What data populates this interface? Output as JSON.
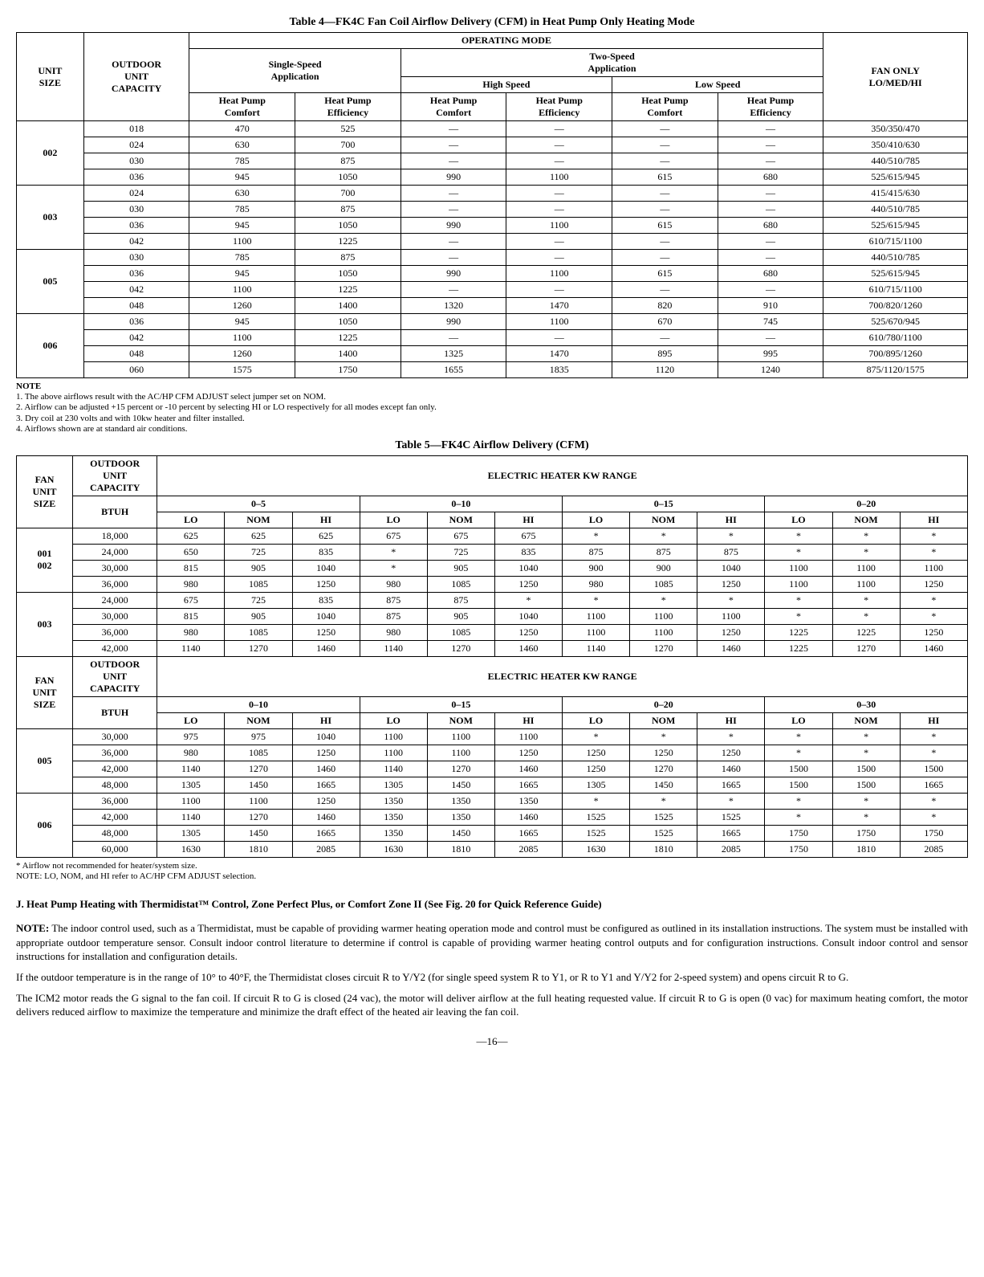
{
  "table4": {
    "title": "Table 4—FK4C Fan Coil Airflow Delivery (CFM) in Heat Pump Only Heating Mode",
    "headers": {
      "unit_size": "UNIT\nSIZE",
      "outdoor": "OUTDOOR\nUNIT\nCAPACITY",
      "operating": "OPERATING MODE",
      "single": "Single-Speed\nApplication",
      "two": "Two-Speed\nApplication",
      "high": "High Speed",
      "low": "Low Speed",
      "hpc": "Heat Pump\nComfort",
      "hpe": "Heat Pump\nEfficiency",
      "fanonly": "FAN ONLY\nLO/MED/HI"
    },
    "groups": [
      {
        "unit": "002",
        "rows": [
          {
            "out": "018",
            "s_c": "470",
            "s_e": "525",
            "h_c": "—",
            "h_e": "—",
            "l_c": "—",
            "l_e": "—",
            "fan": "350/350/470"
          },
          {
            "out": "024",
            "s_c": "630",
            "s_e": "700",
            "h_c": "—",
            "h_e": "—",
            "l_c": "—",
            "l_e": "—",
            "fan": "350/410/630"
          },
          {
            "out": "030",
            "s_c": "785",
            "s_e": "875",
            "h_c": "—",
            "h_e": "—",
            "l_c": "—",
            "l_e": "—",
            "fan": "440/510/785"
          },
          {
            "out": "036",
            "s_c": "945",
            "s_e": "1050",
            "h_c": "990",
            "h_e": "1100",
            "l_c": "615",
            "l_e": "680",
            "fan": "525/615/945"
          }
        ]
      },
      {
        "unit": "003",
        "rows": [
          {
            "out": "024",
            "s_c": "630",
            "s_e": "700",
            "h_c": "—",
            "h_e": "—",
            "l_c": "—",
            "l_e": "—",
            "fan": "415/415/630"
          },
          {
            "out": "030",
            "s_c": "785",
            "s_e": "875",
            "h_c": "—",
            "h_e": "—",
            "l_c": "—",
            "l_e": "—",
            "fan": "440/510/785"
          },
          {
            "out": "036",
            "s_c": "945",
            "s_e": "1050",
            "h_c": "990",
            "h_e": "1100",
            "l_c": "615",
            "l_e": "680",
            "fan": "525/615/945"
          },
          {
            "out": "042",
            "s_c": "1100",
            "s_e": "1225",
            "h_c": "—",
            "h_e": "—",
            "l_c": "—",
            "l_e": "—",
            "fan": "610/715/1100"
          }
        ]
      },
      {
        "unit": "005",
        "rows": [
          {
            "out": "030",
            "s_c": "785",
            "s_e": "875",
            "h_c": "—",
            "h_e": "—",
            "l_c": "—",
            "l_e": "—",
            "fan": "440/510/785"
          },
          {
            "out": "036",
            "s_c": "945",
            "s_e": "1050",
            "h_c": "990",
            "h_e": "1100",
            "l_c": "615",
            "l_e": "680",
            "fan": "525/615/945"
          },
          {
            "out": "042",
            "s_c": "1100",
            "s_e": "1225",
            "h_c": "—",
            "h_e": "—",
            "l_c": "—",
            "l_e": "—",
            "fan": "610/715/1100"
          },
          {
            "out": "048",
            "s_c": "1260",
            "s_e": "1400",
            "h_c": "1320",
            "h_e": "1470",
            "l_c": "820",
            "l_e": "910",
            "fan": "700/820/1260"
          }
        ]
      },
      {
        "unit": "006",
        "rows": [
          {
            "out": "036",
            "s_c": "945",
            "s_e": "1050",
            "h_c": "990",
            "h_e": "1100",
            "l_c": "670",
            "l_e": "745",
            "fan": "525/670/945"
          },
          {
            "out": "042",
            "s_c": "1100",
            "s_e": "1225",
            "h_c": "—",
            "h_e": "—",
            "l_c": "—",
            "l_e": "—",
            "fan": "610/780/1100"
          },
          {
            "out": "048",
            "s_c": "1260",
            "s_e": "1400",
            "h_c": "1325",
            "h_e": "1470",
            "l_c": "895",
            "l_e": "995",
            "fan": "700/895/1260"
          },
          {
            "out": "060",
            "s_c": "1575",
            "s_e": "1750",
            "h_c": "1655",
            "h_e": "1835",
            "l_c": "1120",
            "l_e": "1240",
            "fan": "875/1120/1575"
          }
        ]
      }
    ],
    "notes": [
      "NOTE",
      "1. The above airflows result with the AC/HP CFM ADJUST select jumper set on NOM.",
      "2. Airflow can be adjusted +15 percent or -10 percent by selecting HI or LO respectively for all modes except fan only.",
      "3. Dry coil at 230 volts and with 10kw heater and filter installed.",
      "4. Airflows shown are at standard air conditions."
    ]
  },
  "table5": {
    "title": "Table 5—FK4C Airflow Delivery (CFM)",
    "headers": {
      "fan": "FAN\nUNIT\nSIZE",
      "outdoor": "OUTDOOR\nUNIT\nCAPACITY\nBTUH",
      "ehkw": "ELECTRIC HEATER KW RANGE",
      "ranges_top": [
        "0–5",
        "0–10",
        "0–15",
        "0–20"
      ],
      "ranges_bot": [
        "0–10",
        "0–15",
        "0–20",
        "0–30"
      ],
      "lnh": [
        "LO",
        "NOM",
        "HI"
      ]
    },
    "topGroups": [
      {
        "unit": "001\n002",
        "rows": [
          {
            "btuh": "18,000",
            "v": [
              "625",
              "625",
              "625",
              "675",
              "675",
              "675",
              "*",
              "*",
              "*",
              "*",
              "*",
              "*"
            ]
          },
          {
            "btuh": "24,000",
            "v": [
              "650",
              "725",
              "835",
              "*",
              "725",
              "835",
              "875",
              "875",
              "875",
              "*",
              "*",
              "*"
            ]
          },
          {
            "btuh": "30,000",
            "v": [
              "815",
              "905",
              "1040",
              "*",
              "905",
              "1040",
              "900",
              "900",
              "1040",
              "1100",
              "1100",
              "1100"
            ]
          },
          {
            "btuh": "36,000",
            "v": [
              "980",
              "1085",
              "1250",
              "980",
              "1085",
              "1250",
              "980",
              "1085",
              "1250",
              "1100",
              "1100",
              "1250"
            ]
          }
        ]
      },
      {
        "unit": "003",
        "rows": [
          {
            "btuh": "24,000",
            "v": [
              "675",
              "725",
              "835",
              "875",
              "875",
              "*",
              "*",
              "*",
              "*",
              "*",
              "*",
              "*"
            ]
          },
          {
            "btuh": "30,000",
            "v": [
              "815",
              "905",
              "1040",
              "875",
              "905",
              "1040",
              "1100",
              "1100",
              "1100",
              "*",
              "*",
              "*"
            ]
          },
          {
            "btuh": "36,000",
            "v": [
              "980",
              "1085",
              "1250",
              "980",
              "1085",
              "1250",
              "1100",
              "1100",
              "1250",
              "1225",
              "1225",
              "1250"
            ]
          },
          {
            "btuh": "42,000",
            "v": [
              "1140",
              "1270",
              "1460",
              "1140",
              "1270",
              "1460",
              "1140",
              "1270",
              "1460",
              "1225",
              "1270",
              "1460"
            ]
          }
        ]
      }
    ],
    "botGroups": [
      {
        "unit": "005",
        "rows": [
          {
            "btuh": "30,000",
            "v": [
              "975",
              "975",
              "1040",
              "1100",
              "1100",
              "1100",
              "*",
              "*",
              "*",
              "*",
              "*",
              "*"
            ]
          },
          {
            "btuh": "36,000",
            "v": [
              "980",
              "1085",
              "1250",
              "1100",
              "1100",
              "1250",
              "1250",
              "1250",
              "1250",
              "*",
              "*",
              "*"
            ]
          },
          {
            "btuh": "42,000",
            "v": [
              "1140",
              "1270",
              "1460",
              "1140",
              "1270",
              "1460",
              "1250",
              "1270",
              "1460",
              "1500",
              "1500",
              "1500"
            ]
          },
          {
            "btuh": "48,000",
            "v": [
              "1305",
              "1450",
              "1665",
              "1305",
              "1450",
              "1665",
              "1305",
              "1450",
              "1665",
              "1500",
              "1500",
              "1665"
            ]
          }
        ]
      },
      {
        "unit": "006",
        "rows": [
          {
            "btuh": "36,000",
            "v": [
              "1100",
              "1100",
              "1250",
              "1350",
              "1350",
              "1350",
              "*",
              "*",
              "*",
              "*",
              "*",
              "*"
            ]
          },
          {
            "btuh": "42,000",
            "v": [
              "1140",
              "1270",
              "1460",
              "1350",
              "1350",
              "1460",
              "1525",
              "1525",
              "1525",
              "*",
              "*",
              "*"
            ]
          },
          {
            "btuh": "48,000",
            "v": [
              "1305",
              "1450",
              "1665",
              "1350",
              "1450",
              "1665",
              "1525",
              "1525",
              "1665",
              "1750",
              "1750",
              "1750"
            ]
          },
          {
            "btuh": "60,000",
            "v": [
              "1630",
              "1810",
              "2085",
              "1630",
              "1810",
              "2085",
              "1630",
              "1810",
              "2085",
              "1750",
              "1810",
              "2085"
            ]
          }
        ]
      }
    ],
    "notes": [
      "* Airflow not recommended for heater/system size.",
      "NOTE: LO, NOM, and HI refer to AC/HP CFM ADJUST selection."
    ]
  },
  "sectionJ": {
    "heading": "J.   Heat Pump Heating with Thermidistat™ Control, Zone Perfect Plus, or Comfort Zone II (See Fig. 20 for Quick Reference Guide)",
    "p1a": "NOTE:",
    "p1b": " The indoor control used, such as a Thermidistat, must be capable of providing warmer heating operation mode and control must be configured as outlined in its installation instructions. The system must be installed with appropriate outdoor temperature sensor. Consult indoor control literature to determine if control is capable of providing warmer heating control outputs and for configuration instructions. Consult indoor control and sensor instructions for installation and configuration details.",
    "p2": "If the outdoor temperature is in the range of 10° to 40°F, the Thermidistat closes circuit R to Y/Y2 (for single speed system R to Y1, or R to Y1 and Y/Y2 for 2-speed system) and opens circuit R to G.",
    "p3": "The ICM2 motor reads the G signal to the fan coil. If circuit R to G is closed (24 vac), the motor will deliver airflow at the full heating requested value. If circuit R to G is open (0 vac) for maximum heating comfort, the motor delivers reduced airflow to maximize the temperature and minimize the draft effect of the heated air leaving the fan coil."
  },
  "pagefoot": "—16—"
}
